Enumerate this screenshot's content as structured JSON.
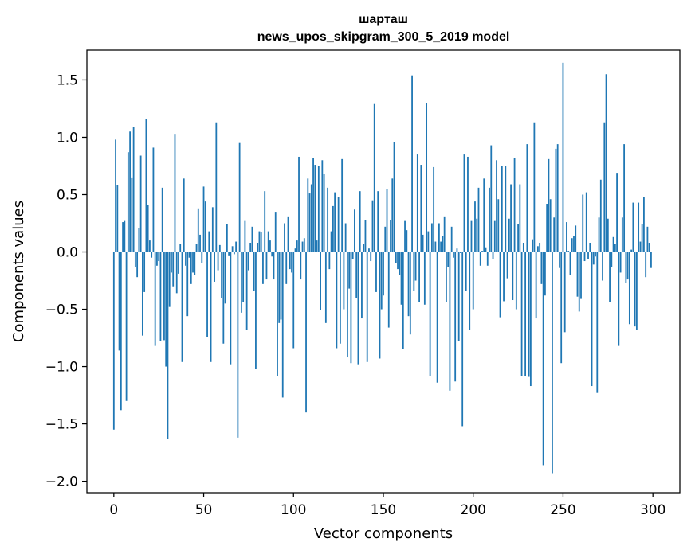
{
  "chart_data": {
    "type": "bar",
    "title_lines": [
      "шарташ",
      "news_upos_skipgram_300_5_2019 model"
    ],
    "xlabel": "Vector components",
    "ylabel": "Components values",
    "xlim": [
      -15,
      315
    ],
    "ylim": [
      -2.1,
      1.76
    ],
    "xticks": [
      0,
      50,
      100,
      150,
      200,
      250,
      300
    ],
    "yticks": [
      -2.0,
      -1.5,
      -1.0,
      -0.5,
      0.0,
      0.5,
      1.0,
      1.5
    ],
    "ytick_labels": [
      "−2.0",
      "−1.5",
      "−1.0",
      "−0.5",
      "0.0",
      "0.5",
      "1.0",
      "1.5"
    ],
    "bar_color": "#1f77b4",
    "x": "0..299 (component index)",
    "values": [
      -1.55,
      0.98,
      0.58,
      -0.86,
      -1.38,
      0.26,
      0.27,
      -1.3,
      0.87,
      1.05,
      0.65,
      1.09,
      -0.13,
      -0.22,
      0.21,
      0.84,
      -0.73,
      -0.35,
      1.16,
      0.41,
      0.1,
      -0.05,
      0.91,
      -0.82,
      -0.12,
      -0.08,
      -0.78,
      0.56,
      -0.77,
      -1.0,
      -1.63,
      -0.48,
      -0.18,
      -0.3,
      1.03,
      -0.36,
      -0.19,
      0.07,
      -0.96,
      0.64,
      -0.12,
      -0.56,
      -0.05,
      -0.28,
      -0.18,
      -0.2,
      0.07,
      0.38,
      0.15,
      -0.1,
      0.57,
      0.44,
      -0.74,
      0.18,
      -0.96,
      0.39,
      -0.26,
      1.13,
      -0.16,
      0.06,
      -0.4,
      -0.8,
      -0.45,
      0.24,
      -0.03,
      -0.98,
      0.05,
      -0.02,
      0.09,
      -1.62,
      0.95,
      -0.53,
      -0.44,
      0.27,
      -0.68,
      -0.16,
      0.08,
      0.22,
      -0.34,
      -1.02,
      0.08,
      0.18,
      0.17,
      -0.28,
      0.53,
      -0.24,
      0.18,
      0.1,
      -0.04,
      -0.24,
      0.35,
      -1.08,
      -0.62,
      -0.59,
      -1.27,
      0.25,
      -0.28,
      0.31,
      -0.15,
      -0.18,
      -0.84,
      0.03,
      0.1,
      0.83,
      -0.24,
      0.09,
      0.12,
      -1.4,
      0.64,
      0.51,
      0.59,
      0.82,
      0.76,
      0.1,
      0.75,
      -0.51,
      0.8,
      0.68,
      -0.62,
      0.56,
      -0.15,
      0.18,
      0.4,
      0.52,
      -0.84,
      0.48,
      -0.8,
      0.81,
      -0.5,
      0.25,
      -0.92,
      -0.32,
      -0.97,
      -0.06,
      0.37,
      -0.4,
      -0.98,
      0.53,
      -0.58,
      0.07,
      0.28,
      -0.96,
      0.03,
      -0.08,
      0.45,
      1.29,
      -0.35,
      0.53,
      -0.93,
      -0.5,
      -0.38,
      0.22,
      0.55,
      -0.66,
      0.28,
      0.64,
      0.96,
      -0.1,
      -0.15,
      -0.2,
      -0.46,
      -0.85,
      0.27,
      0.19,
      -0.56,
      -0.72,
      1.54,
      -0.34,
      -0.25,
      0.85,
      -0.44,
      0.76,
      0.15,
      -0.46,
      1.3,
      0.18,
      -1.08,
      0.25,
      0.74,
      0.09,
      -1.14,
      0.25,
      0.09,
      0.14,
      0.31,
      -0.44,
      -0.13,
      -1.21,
      0.22,
      -0.05,
      -1.13,
      0.03,
      -0.78,
      -0.01,
      -1.52,
      0.85,
      -0.34,
      0.83,
      -0.68,
      0.27,
      -0.5,
      0.44,
      0.29,
      0.56,
      -0.12,
      0.01,
      0.64,
      0.04,
      -0.12,
      0.56,
      0.93,
      -0.06,
      0.27,
      0.8,
      0.46,
      -0.57,
      0.75,
      -0.43,
      0.75,
      -0.23,
      0.29,
      0.59,
      -0.42,
      0.82,
      -0.5,
      0.24,
      0.59,
      -1.08,
      0.08,
      -1.08,
      0.94,
      -1.09,
      -1.17,
      0.11,
      1.13,
      -0.58,
      0.05,
      0.08,
      -0.28,
      -1.86,
      -0.38,
      0.42,
      0.81,
      0.46,
      -1.93,
      0.3,
      0.9,
      0.94,
      -0.14,
      -0.97,
      1.65,
      -0.7,
      0.26,
      0.01,
      -0.2,
      0.12,
      0.14,
      0.23,
      -0.39,
      -0.52,
      -0.41,
      0.5,
      -0.08,
      0.52,
      -0.06,
      0.08,
      -1.17,
      -0.11,
      -0.04,
      -1.23,
      0.3,
      0.63,
      -0.25,
      1.13,
      1.55,
      0.29,
      -0.44,
      -0.13,
      0.13,
      0.07,
      0.69,
      -0.82,
      -0.18,
      0.3,
      0.94,
      -0.27,
      -0.24,
      -0.63,
      0.02,
      0.43,
      -0.65,
      -0.68,
      0.43,
      0.09,
      0.24,
      0.48,
      -0.22,
      0.22,
      0.08,
      -0.14
    ]
  }
}
